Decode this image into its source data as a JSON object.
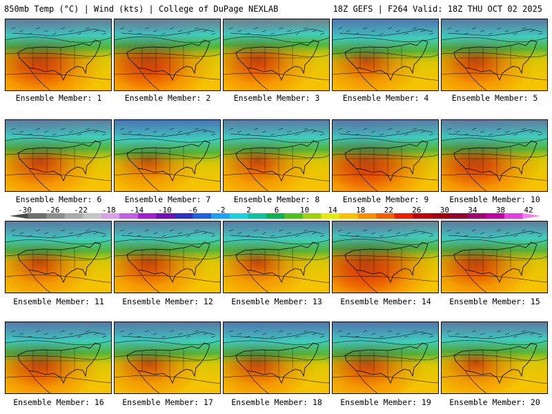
{
  "header": {
    "left_title": "850mb Temp (°C) | Wind (kts) | College of DuPage NEXLAB",
    "right_title": "18Z GEFS | F264 Valid: 18Z THU OCT 02 2025"
  },
  "members": [
    {
      "label": "Ensemble Member: 1",
      "warm": 0.72,
      "cold": 0.35
    },
    {
      "label": "Ensemble Member: 2",
      "warm": 0.75,
      "cold": 0.3
    },
    {
      "label": "Ensemble Member: 3",
      "warm": 0.55,
      "cold": 0.25
    },
    {
      "label": "Ensemble Member: 4",
      "warm": 0.45,
      "cold": 0.55
    },
    {
      "label": "Ensemble Member: 5",
      "warm": 0.55,
      "cold": 0.45
    },
    {
      "label": "Ensemble Member: 6",
      "warm": 0.55,
      "cold": 0.4
    },
    {
      "label": "Ensemble Member: 7",
      "warm": 0.35,
      "cold": 0.6
    },
    {
      "label": "Ensemble Member: 8",
      "warm": 0.45,
      "cold": 0.45
    },
    {
      "label": "Ensemble Member: 9",
      "warm": 0.8,
      "cold": 0.45
    },
    {
      "label": "Ensemble Member: 10",
      "warm": 0.7,
      "cold": 0.4
    },
    {
      "label": "Ensemble Member: 11",
      "warm": 0.45,
      "cold": 0.45
    },
    {
      "label": "Ensemble Member: 12",
      "warm": 0.55,
      "cold": 0.4
    },
    {
      "label": "Ensemble Member: 13",
      "warm": 0.4,
      "cold": 0.45
    },
    {
      "label": "Ensemble Member: 14",
      "warm": 0.85,
      "cold": 0.3
    },
    {
      "label": "Ensemble Member: 15",
      "warm": 0.6,
      "cold": 0.4
    },
    {
      "label": "Ensemble Member: 16",
      "warm": 0.6,
      "cold": 0.5
    },
    {
      "label": "Ensemble Member: 17",
      "warm": 0.4,
      "cold": 0.5
    },
    {
      "label": "Ensemble Member: 18",
      "warm": 0.5,
      "cold": 0.55
    },
    {
      "label": "Ensemble Member: 19",
      "warm": 0.55,
      "cold": 0.55
    },
    {
      "label": "Ensemble Member: 20",
      "warm": 0.35,
      "cold": 0.45
    }
  ],
  "colorbar": {
    "ticks": [
      "-30",
      "-26",
      "-22",
      "-18",
      "-14",
      "-10",
      "-6",
      "-2",
      "2",
      "6",
      "10",
      "14",
      "18",
      "22",
      "26",
      "30",
      "34",
      "38",
      "42"
    ],
    "colors": [
      "#4a4a4a",
      "#6e6e6e",
      "#8c8c8c",
      "#aaaaaa",
      "#c4c4c4",
      "#d9a0e8",
      "#c060e0",
      "#a020d0",
      "#7010b0",
      "#3030c0",
      "#2060e0",
      "#20a0f0",
      "#20d0e0",
      "#10c0a0",
      "#10b050",
      "#50c020",
      "#a0d010",
      "#e8e810",
      "#f8c000",
      "#f89000",
      "#f06000",
      "#e82000",
      "#c00010",
      "#a00010",
      "#900030",
      "#a00070",
      "#c000a0",
      "#e040e0",
      "#f080f0"
    ]
  }
}
